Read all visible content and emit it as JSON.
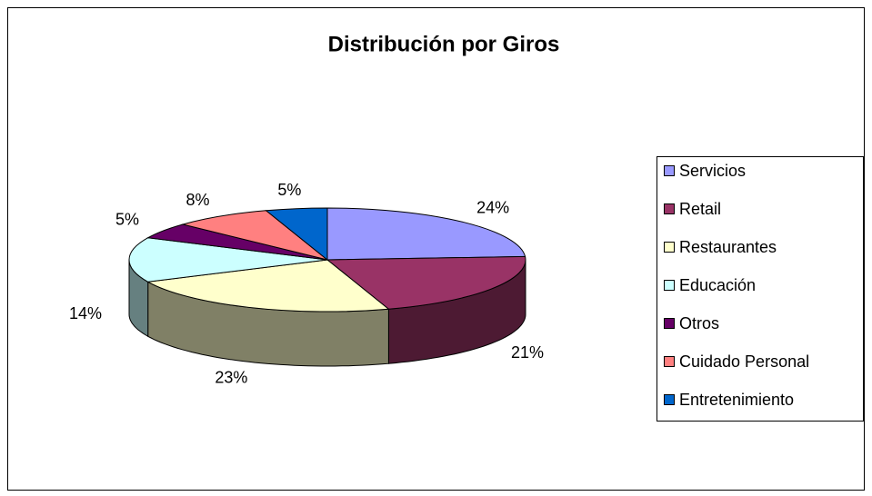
{
  "chart_data": {
    "type": "pie",
    "title": "Distribución por Giros",
    "categories": [
      "Servicios",
      "Retail",
      "Restaurantes",
      "Educación",
      "Otros",
      "Cuidado Personal",
      "Entretenimiento"
    ],
    "values": [
      24,
      21,
      23,
      14,
      5,
      8,
      5
    ],
    "value_labels": [
      "24%",
      "21%",
      "23%",
      "14%",
      "5%",
      "8%",
      "5%"
    ],
    "colors": [
      "#9999ff",
      "#993366",
      "#ffffcc",
      "#ccffff",
      "#660066",
      "#ff8080",
      "#0066cc"
    ],
    "legend": "right"
  }
}
